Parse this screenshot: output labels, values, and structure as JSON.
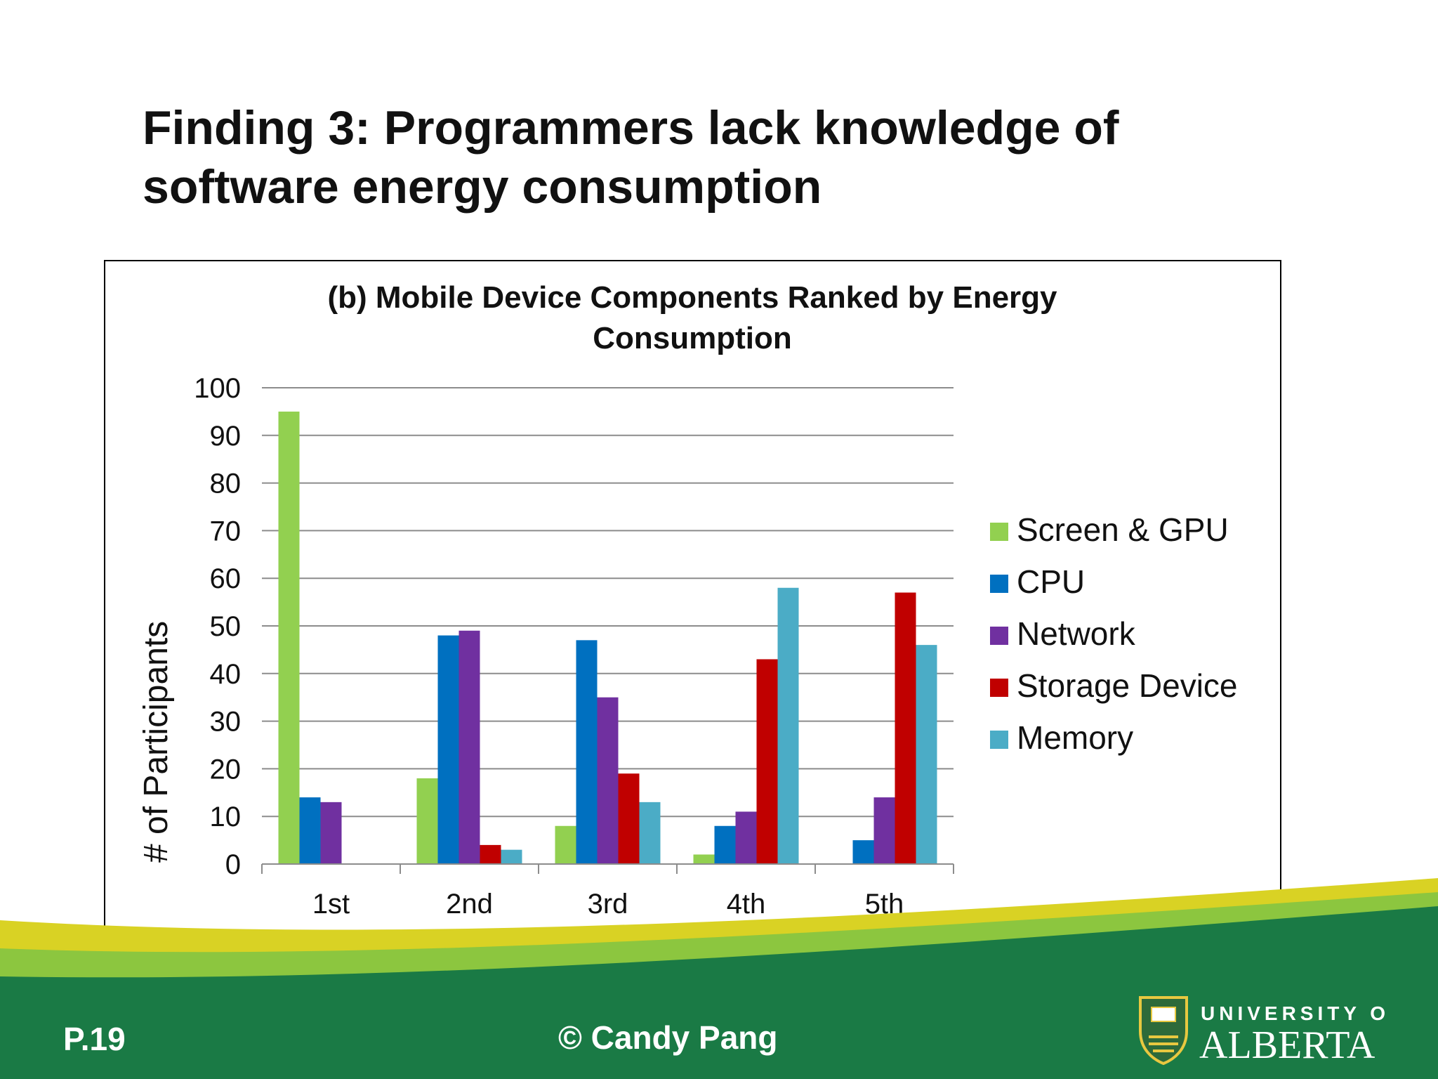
{
  "slide": {
    "title_lines": [
      "Finding 3: Programmers lack knowledge of",
      "software energy consumption"
    ],
    "page_number": "P.19",
    "copyright": "© Candy Pang",
    "logo": {
      "line1": "UNIVERSITY OF",
      "line2": "ALBERTA"
    }
  },
  "colors": {
    "footer_green": "#1a7a45",
    "footer_yellow": "#d9d224",
    "footer_lime": "#8cc63f",
    "footer_text": "#ffffff"
  },
  "chart_data": {
    "type": "bar",
    "title_lines": [
      "(b) Mobile Device Components Ranked by Energy",
      "Consumption"
    ],
    "xlabel": "",
    "ylabel": "# of Participants",
    "ylim": [
      0,
      100
    ],
    "yticks": [
      0,
      10,
      20,
      30,
      40,
      50,
      60,
      70,
      80,
      90,
      100
    ],
    "grid": true,
    "legend_position": "right",
    "categories": [
      "1st",
      "2nd",
      "3rd",
      "4th",
      "5th"
    ],
    "series": [
      {
        "name": "Screen & GPU",
        "color": "#92d050",
        "values": [
          95,
          18,
          8,
          2,
          0
        ]
      },
      {
        "name": "CPU",
        "color": "#0070c0",
        "values": [
          14,
          48,
          47,
          8,
          5
        ]
      },
      {
        "name": "Network",
        "color": "#7030a0",
        "values": [
          13,
          49,
          35,
          11,
          14
        ]
      },
      {
        "name": "Storage Device",
        "color": "#c00000",
        "values": [
          0,
          4,
          19,
          43,
          57
        ]
      },
      {
        "name": "Memory",
        "color": "#4bacc6",
        "values": [
          0,
          3,
          13,
          58,
          46
        ]
      }
    ]
  }
}
